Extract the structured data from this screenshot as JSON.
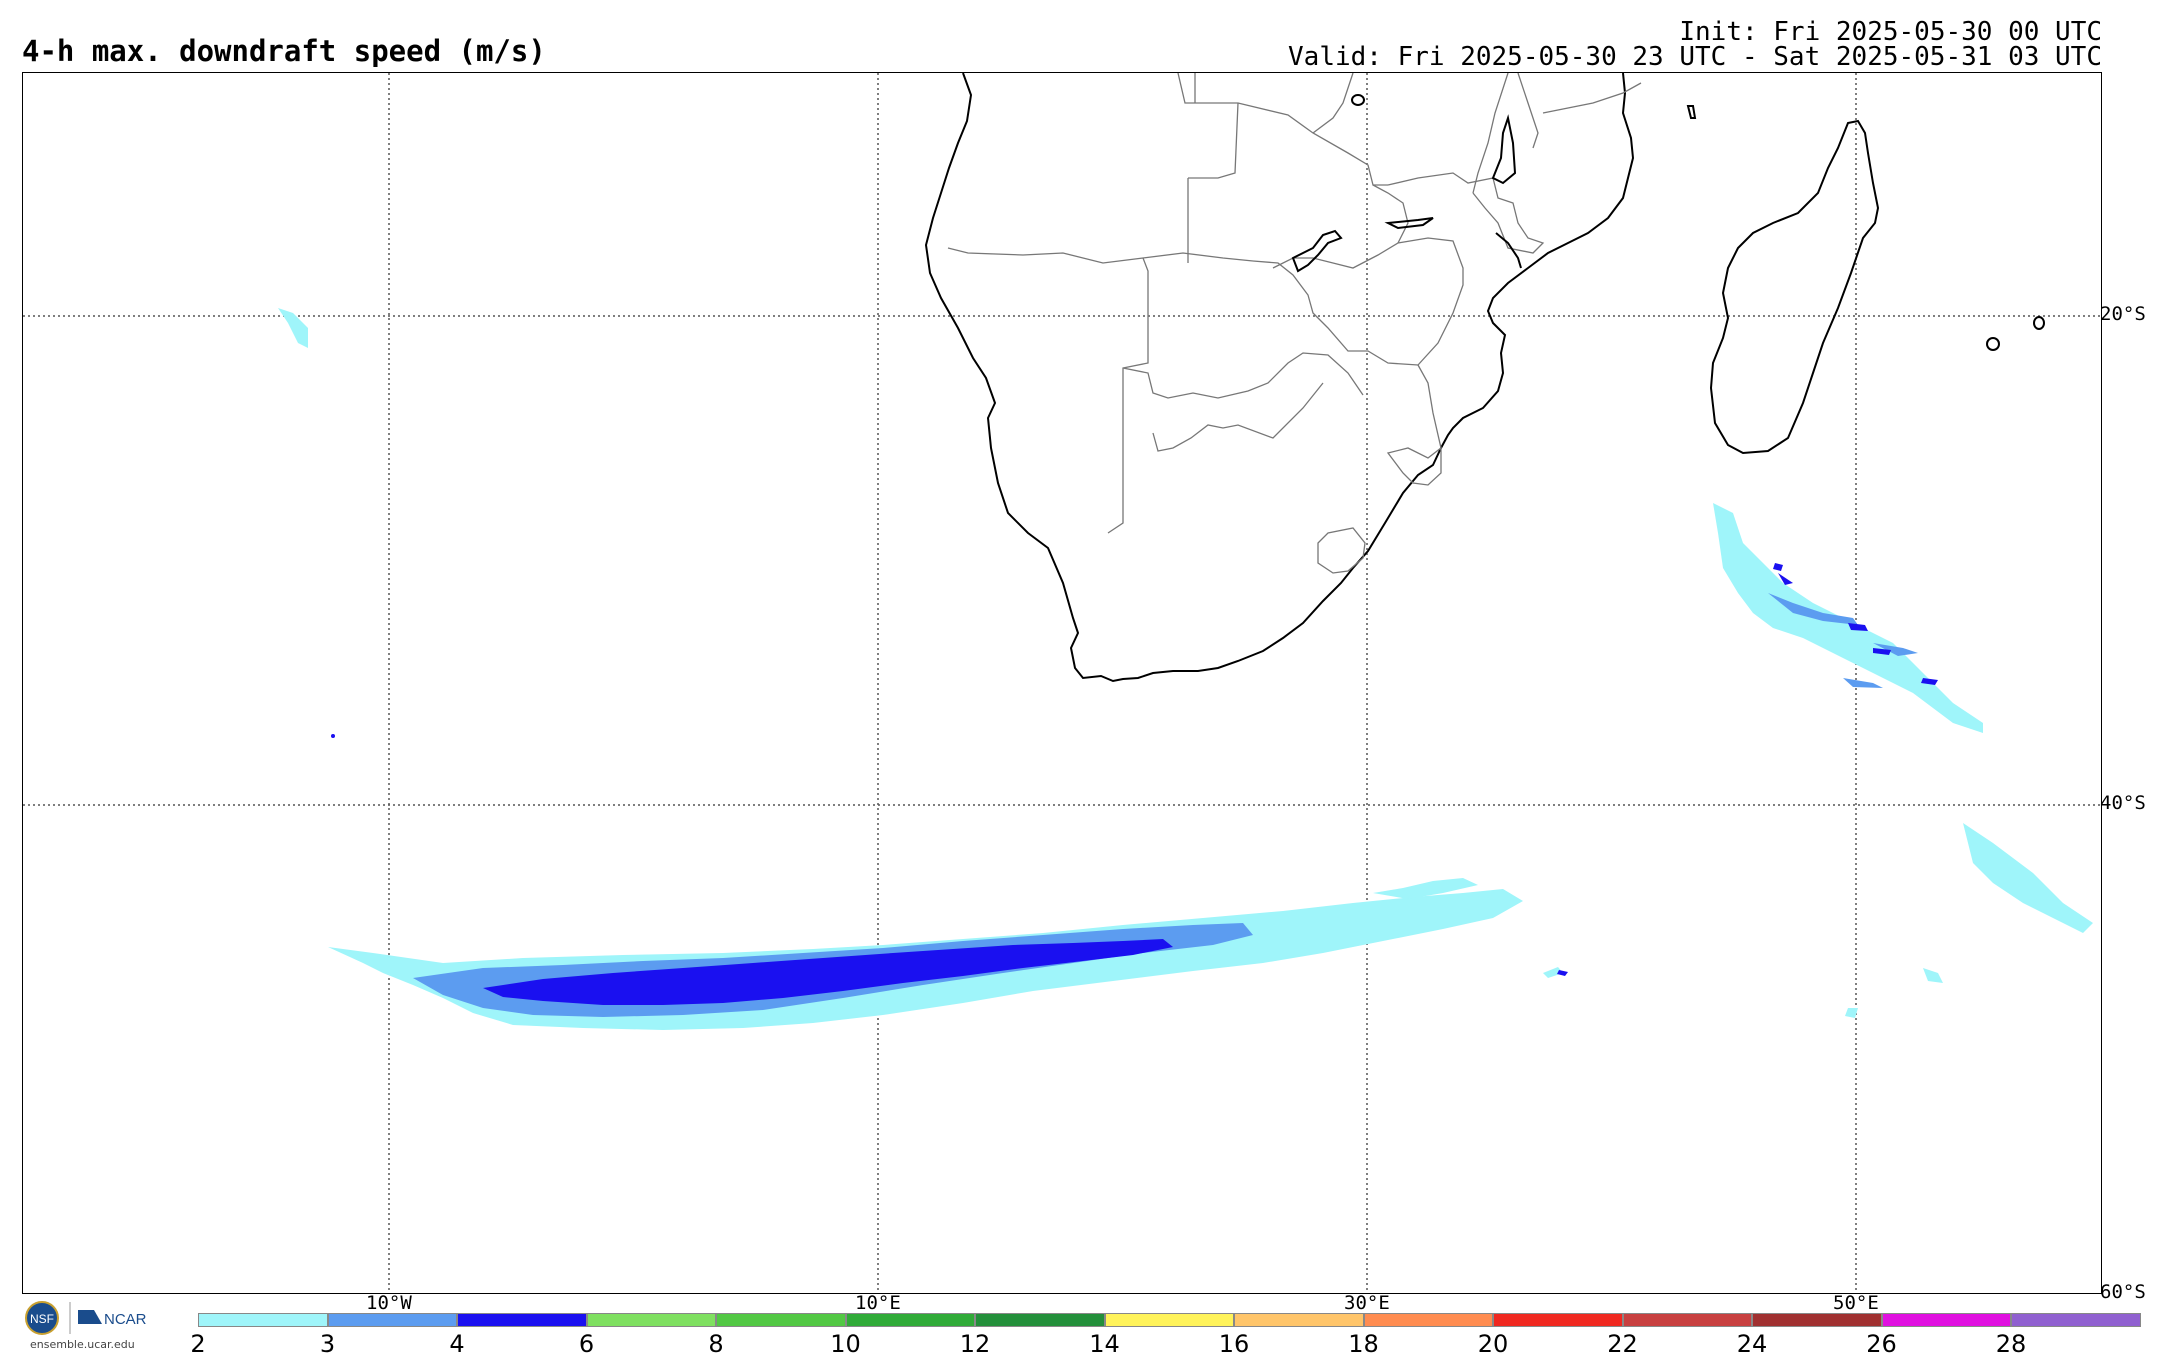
{
  "title": "4-h max. downdraft speed (m/s)",
  "init": "Init: Fri 2025-05-30 00 UTC",
  "valid": "Valid: Fri 2025-05-30 23 UTC - Sat 2025-05-31 03 UTC",
  "lon_labels": [
    "10°W",
    "10°E",
    "30°E",
    "50°E"
  ],
  "lat_labels": [
    "20°S",
    "40°S",
    "60°S"
  ],
  "colorbar": {
    "ticks": [
      "2",
      "3",
      "4",
      "6",
      "8",
      "10",
      "12",
      "14",
      "16",
      "18",
      "20",
      "22",
      "24",
      "26",
      "28"
    ],
    "colors": [
      "#9ff5fa",
      "#5c9cf0",
      "#1a10f0",
      "#7fe060",
      "#52c844",
      "#30aa38",
      "#238f3a",
      "#fff35a",
      "#ffc56a",
      "#ff8c50",
      "#f02820",
      "#c84040",
      "#a03030",
      "#e010e0",
      "#9060d0"
    ]
  },
  "logo": {
    "nsf_text": "NSF",
    "ncar_text": "NCAR",
    "url": "ensemble.ucar.edu"
  }
}
